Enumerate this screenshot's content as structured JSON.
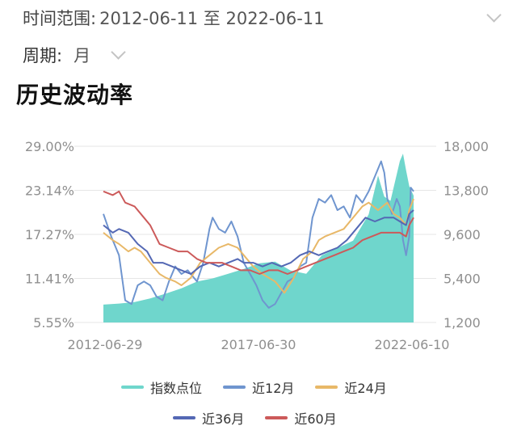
{
  "filters": {
    "range_label": "时间范围:",
    "range_value": "2012-06-11 至 2022-06-11",
    "period_label": "周期:",
    "period_value": "月"
  },
  "icons": {
    "range_dropdown": "chevron-down-icon",
    "period_dropdown": "chevron-down-icon"
  },
  "chart_title": "历史波动率",
  "chart_data": {
    "type": "line",
    "title": "历史波动率",
    "x_tick_labels": [
      "2012-06-29",
      "2017-06-30",
      "2022-06-10"
    ],
    "x_start": "2012-06-29",
    "x_end": "2022-06-10",
    "y_left": {
      "ticks": [
        "29.00%",
        "23.14%",
        "17.27%",
        "11.41%",
        "5.55%"
      ],
      "range": [
        5.55,
        29.0
      ],
      "unit": "%"
    },
    "y_right": {
      "ticks": [
        "18,000",
        "13,800",
        "9,600",
        "5,400",
        "1,200"
      ],
      "range": [
        1200,
        18000
      ]
    },
    "grid": true,
    "legend_position": "bottom",
    "series": [
      {
        "name": "指数点位",
        "type": "area",
        "axis": "right",
        "color": "#6fd6cc",
        "points": [
          [
            2012.5,
            2900
          ],
          [
            2013.0,
            3000
          ],
          [
            2013.5,
            3150
          ],
          [
            2014.0,
            3500
          ],
          [
            2014.5,
            3950
          ],
          [
            2015.0,
            4450
          ],
          [
            2015.5,
            5100
          ],
          [
            2016.0,
            5400
          ],
          [
            2016.5,
            5850
          ],
          [
            2017.0,
            6300
          ],
          [
            2017.5,
            6850
          ],
          [
            2018.0,
            7000
          ],
          [
            2018.5,
            6150
          ],
          [
            2019.0,
            5850
          ],
          [
            2019.5,
            7600
          ],
          [
            2020.0,
            8300
          ],
          [
            2020.5,
            9000
          ],
          [
            2021.0,
            11500
          ],
          [
            2021.3,
            15200
          ],
          [
            2021.5,
            13200
          ],
          [
            2021.7,
            12800
          ],
          [
            2022.0,
            16600
          ],
          [
            2022.1,
            17300
          ],
          [
            2022.2,
            15700
          ],
          [
            2022.3,
            14200
          ],
          [
            2022.44,
            13300
          ]
        ]
      },
      {
        "name": "近12月",
        "axis": "left",
        "color": "#6f95cf",
        "points": [
          [
            2012.5,
            20.0
          ],
          [
            2012.75,
            17.0
          ],
          [
            2013.0,
            14.5
          ],
          [
            2013.2,
            8.5
          ],
          [
            2013.4,
            8.0
          ],
          [
            2013.6,
            10.5
          ],
          [
            2013.8,
            11.0
          ],
          [
            2014.0,
            10.5
          ],
          [
            2014.2,
            9.0
          ],
          [
            2014.4,
            8.5
          ],
          [
            2014.6,
            11.0
          ],
          [
            2014.8,
            13.0
          ],
          [
            2015.0,
            12.0
          ],
          [
            2015.2,
            12.5
          ],
          [
            2015.5,
            11.0
          ],
          [
            2015.7,
            13.5
          ],
          [
            2015.9,
            18.0
          ],
          [
            2016.0,
            19.5
          ],
          [
            2016.2,
            18.0
          ],
          [
            2016.4,
            17.5
          ],
          [
            2016.6,
            19.0
          ],
          [
            2016.8,
            17.0
          ],
          [
            2017.0,
            13.5
          ],
          [
            2017.2,
            12.0
          ],
          [
            2017.4,
            10.5
          ],
          [
            2017.6,
            8.5
          ],
          [
            2017.8,
            7.5
          ],
          [
            2018.0,
            8.0
          ],
          [
            2018.2,
            9.5
          ],
          [
            2018.4,
            11.0
          ],
          [
            2018.6,
            11.5
          ],
          [
            2018.8,
            13.0
          ],
          [
            2019.0,
            13.5
          ],
          [
            2019.2,
            19.5
          ],
          [
            2019.4,
            22.0
          ],
          [
            2019.6,
            21.5
          ],
          [
            2019.8,
            22.5
          ],
          [
            2020.0,
            20.5
          ],
          [
            2020.2,
            21.0
          ],
          [
            2020.4,
            19.5
          ],
          [
            2020.6,
            22.5
          ],
          [
            2020.8,
            21.5
          ],
          [
            2021.0,
            23.0
          ],
          [
            2021.2,
            25.0
          ],
          [
            2021.4,
            27.0
          ],
          [
            2021.5,
            25.5
          ],
          [
            2021.6,
            22.0
          ],
          [
            2021.75,
            20.0
          ],
          [
            2021.9,
            22.0
          ],
          [
            2022.0,
            21.0
          ],
          [
            2022.1,
            16.5
          ],
          [
            2022.2,
            14.5
          ],
          [
            2022.3,
            17.0
          ],
          [
            2022.35,
            23.5
          ],
          [
            2022.44,
            23.0
          ]
        ]
      },
      {
        "name": "近24月",
        "axis": "left",
        "color": "#e8b868",
        "points": [
          [
            2012.5,
            17.5
          ],
          [
            2012.8,
            16.5
          ],
          [
            2013.0,
            16.0
          ],
          [
            2013.3,
            15.0
          ],
          [
            2013.5,
            15.5
          ],
          [
            2013.7,
            15.0
          ],
          [
            2014.0,
            13.5
          ],
          [
            2014.3,
            12.0
          ],
          [
            2014.5,
            11.5
          ],
          [
            2014.8,
            11.0
          ],
          [
            2015.0,
            10.5
          ],
          [
            2015.3,
            11.5
          ],
          [
            2015.6,
            13.5
          ],
          [
            2015.9,
            14.5
          ],
          [
            2016.2,
            15.5
          ],
          [
            2016.5,
            16.0
          ],
          [
            2016.8,
            15.5
          ],
          [
            2017.0,
            14.5
          ],
          [
            2017.3,
            13.0
          ],
          [
            2017.6,
            12.0
          ],
          [
            2017.8,
            11.5
          ],
          [
            2018.0,
            11.0
          ],
          [
            2018.3,
            9.5
          ],
          [
            2018.6,
            11.5
          ],
          [
            2018.9,
            14.0
          ],
          [
            2019.2,
            15.0
          ],
          [
            2019.4,
            16.5
          ],
          [
            2019.6,
            17.0
          ],
          [
            2019.9,
            17.5
          ],
          [
            2020.2,
            18.0
          ],
          [
            2020.5,
            19.5
          ],
          [
            2020.8,
            21.0
          ],
          [
            2021.0,
            21.5
          ],
          [
            2021.3,
            20.5
          ],
          [
            2021.6,
            21.5
          ],
          [
            2021.8,
            20.0
          ],
          [
            2022.0,
            19.5
          ],
          [
            2022.2,
            18.5
          ],
          [
            2022.3,
            20.5
          ],
          [
            2022.44,
            22.0
          ]
        ]
      },
      {
        "name": "近36月",
        "axis": "left",
        "color": "#5468b4",
        "points": [
          [
            2012.5,
            18.5
          ],
          [
            2012.8,
            17.5
          ],
          [
            2013.0,
            18.0
          ],
          [
            2013.3,
            17.5
          ],
          [
            2013.6,
            16.0
          ],
          [
            2013.9,
            15.0
          ],
          [
            2014.1,
            13.5
          ],
          [
            2014.4,
            13.5
          ],
          [
            2014.7,
            13.0
          ],
          [
            2015.0,
            12.5
          ],
          [
            2015.3,
            12.0
          ],
          [
            2015.6,
            13.0
          ],
          [
            2015.9,
            13.5
          ],
          [
            2016.2,
            13.0
          ],
          [
            2016.5,
            13.5
          ],
          [
            2016.8,
            14.0
          ],
          [
            2017.0,
            13.5
          ],
          [
            2017.3,
            13.5
          ],
          [
            2017.6,
            13.0
          ],
          [
            2017.9,
            13.5
          ],
          [
            2018.2,
            13.0
          ],
          [
            2018.5,
            13.5
          ],
          [
            2018.8,
            14.5
          ],
          [
            2019.1,
            15.0
          ],
          [
            2019.4,
            14.5
          ],
          [
            2019.7,
            15.0
          ],
          [
            2020.0,
            15.5
          ],
          [
            2020.3,
            16.5
          ],
          [
            2020.6,
            18.0
          ],
          [
            2020.9,
            19.5
          ],
          [
            2021.2,
            19.0
          ],
          [
            2021.5,
            19.5
          ],
          [
            2021.8,
            19.5
          ],
          [
            2022.0,
            19.0
          ],
          [
            2022.2,
            18.5
          ],
          [
            2022.3,
            20.0
          ],
          [
            2022.44,
            20.5
          ]
        ]
      },
      {
        "name": "近60月",
        "axis": "left",
        "color": "#cc5a5a",
        "points": [
          [
            2012.5,
            23.0
          ],
          [
            2012.8,
            22.5
          ],
          [
            2013.0,
            23.0
          ],
          [
            2013.2,
            21.5
          ],
          [
            2013.5,
            21.0
          ],
          [
            2013.8,
            19.5
          ],
          [
            2014.0,
            18.5
          ],
          [
            2014.3,
            16.0
          ],
          [
            2014.6,
            15.5
          ],
          [
            2014.9,
            15.0
          ],
          [
            2015.2,
            15.0
          ],
          [
            2015.5,
            14.0
          ],
          [
            2015.8,
            13.5
          ],
          [
            2016.0,
            13.5
          ],
          [
            2016.3,
            13.5
          ],
          [
            2016.6,
            13.0
          ],
          [
            2016.9,
            12.5
          ],
          [
            2017.2,
            12.5
          ],
          [
            2017.5,
            12.0
          ],
          [
            2017.8,
            12.5
          ],
          [
            2018.1,
            12.5
          ],
          [
            2018.4,
            12.0
          ],
          [
            2018.7,
            12.5
          ],
          [
            2019.0,
            13.0
          ],
          [
            2019.3,
            13.5
          ],
          [
            2019.6,
            14.0
          ],
          [
            2019.9,
            14.5
          ],
          [
            2020.2,
            15.0
          ],
          [
            2020.5,
            15.5
          ],
          [
            2020.8,
            16.5
          ],
          [
            2021.1,
            17.0
          ],
          [
            2021.4,
            17.5
          ],
          [
            2021.7,
            17.5
          ],
          [
            2022.0,
            17.5
          ],
          [
            2022.2,
            17.0
          ],
          [
            2022.3,
            18.5
          ],
          [
            2022.44,
            19.5
          ]
        ]
      }
    ]
  }
}
